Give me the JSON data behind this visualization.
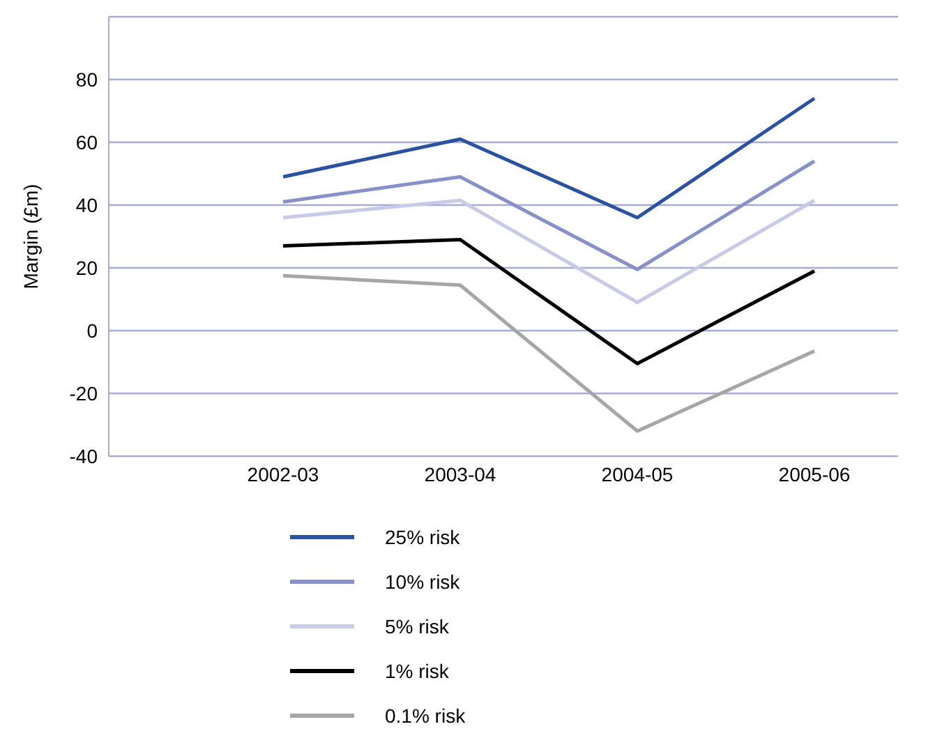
{
  "chart_data": {
    "type": "line",
    "ylabel": "Margin (£m)",
    "categories": [
      "2002-03",
      "2003-04",
      "2004-05",
      "2005-06"
    ],
    "series": [
      {
        "name": "25% risk",
        "color": "#2a52a0",
        "values": [
          49,
          61,
          36,
          74
        ]
      },
      {
        "name": "10% risk",
        "color": "#8890c8",
        "values": [
          41,
          49,
          19.5,
          54
        ]
      },
      {
        "name": "5% risk",
        "color": "#c8cae6",
        "values": [
          36,
          41.5,
          9,
          41.5
        ]
      },
      {
        "name": "1% risk",
        "color": "#000000",
        "values": [
          27,
          29,
          -10.5,
          19
        ]
      },
      {
        "name": "0.1% risk",
        "color": "#a6a6a6",
        "values": [
          17.5,
          14.5,
          -32,
          -6.5
        ]
      }
    ],
    "ylim": [
      -40,
      100
    ],
    "yticks": [
      -40,
      -20,
      0,
      20,
      40,
      60,
      80,
      {
        "value": 100,
        "label": null
      }
    ],
    "grid": "y",
    "legend": "bottom",
    "marker": "none",
    "line_style": "solid"
  }
}
